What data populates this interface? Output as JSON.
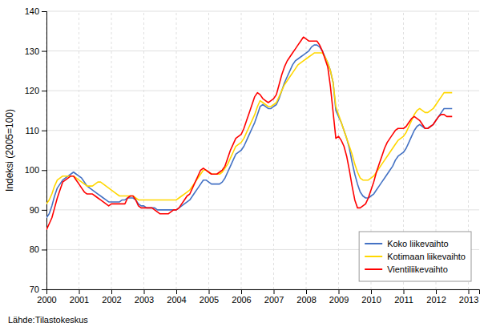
{
  "chart_data": {
    "type": "line",
    "ylabel": "Indeksi (2005=100)",
    "annotations": [
      "Lähde:Tilastokeskus"
    ],
    "xlim": [
      2000.0,
      2013.333
    ],
    "xticks": [
      2000,
      2001,
      2002,
      2003,
      2004,
      2005,
      2006,
      2007,
      2008,
      2009,
      2010,
      2011,
      2012,
      2013
    ],
    "ylim": [
      70,
      140
    ],
    "yticks": [
      70,
      80,
      90,
      100,
      110,
      120,
      130,
      140
    ],
    "grid": true,
    "legend": "lower right",
    "x": [
      2000.0,
      2000.0833333333333,
      2000.1666666666667,
      2000.25,
      2000.3333333333333,
      2000.4166666666667,
      2000.5,
      2000.5833333333333,
      2000.6666666666667,
      2000.75,
      2000.8333333333333,
      2000.9166666666667,
      2001.0,
      2001.0833333333333,
      2001.1666666666667,
      2001.25,
      2001.3333333333333,
      2001.4166666666667,
      2001.5,
      2001.5833333333333,
      2001.6666666666667,
      2001.75,
      2001.8333333333333,
      2001.9166666666667,
      2002.0,
      2002.0833333333333,
      2002.1666666666667,
      2002.25,
      2002.3333333333333,
      2002.4166666666667,
      2002.5,
      2002.5833333333333,
      2002.6666666666667,
      2002.75,
      2002.8333333333333,
      2002.9166666666667,
      2003.0,
      2003.0833333333333,
      2003.1666666666667,
      2003.25,
      2003.3333333333333,
      2003.4166666666667,
      2003.5,
      2003.5833333333333,
      2003.6666666666667,
      2003.75,
      2003.8333333333333,
      2003.9166666666667,
      2004.0,
      2004.0833333333333,
      2004.1666666666667,
      2004.25,
      2004.3333333333333,
      2004.4166666666667,
      2004.5,
      2004.5833333333333,
      2004.6666666666667,
      2004.75,
      2004.8333333333333,
      2004.9166666666667,
      2005.0,
      2005.0833333333333,
      2005.1666666666667,
      2005.25,
      2005.3333333333333,
      2005.4166666666667,
      2005.5,
      2005.5833333333333,
      2005.6666666666667,
      2005.75,
      2005.8333333333333,
      2005.9166666666667,
      2006.0,
      2006.0833333333333,
      2006.1666666666667,
      2006.25,
      2006.3333333333333,
      2006.4166666666667,
      2006.5,
      2006.5833333333333,
      2006.6666666666667,
      2006.75,
      2006.8333333333333,
      2006.9166666666667,
      2007.0,
      2007.0833333333333,
      2007.1666666666667,
      2007.25,
      2007.3333333333333,
      2007.4166666666667,
      2007.5,
      2007.5833333333333,
      2007.6666666666667,
      2007.75,
      2007.8333333333333,
      2007.9166666666667,
      2008.0,
      2008.0833333333333,
      2008.1666666666667,
      2008.25,
      2008.3333333333333,
      2008.4166666666667,
      2008.5,
      2008.5833333333333,
      2008.6666666666667,
      2008.75,
      2008.8333333333333,
      2008.9166666666667,
      2009.0,
      2009.0833333333333,
      2009.1666666666667,
      2009.25,
      2009.3333333333333,
      2009.4166666666667,
      2009.5,
      2009.5833333333333,
      2009.6666666666667,
      2009.75,
      2009.8333333333333,
      2009.9166666666667,
      2010.0,
      2010.0833333333333,
      2010.1666666666667,
      2010.25,
      2010.3333333333333,
      2010.4166666666667,
      2010.5,
      2010.5833333333333,
      2010.6666666666667,
      2010.75,
      2010.8333333333333,
      2010.9166666666667,
      2011.0,
      2011.0833333333333,
      2011.1666666666667,
      2011.25,
      2011.3333333333333,
      2011.4166666666667,
      2011.5,
      2011.5833333333333,
      2011.6666666666667,
      2011.75,
      2011.8333333333333,
      2011.9166666666667,
      2012.0,
      2012.0833333333333,
      2012.1666666666667,
      2012.25,
      2012.3333333333333,
      2012.4166666666667,
      2012.5
    ],
    "series": [
      {
        "name": "Koko liikevaihto",
        "color": "#4472C4",
        "values": [
          88.0,
          89.0,
          91.0,
          93.5,
          95.5,
          96.5,
          97.5,
          98.0,
          98.5,
          99.0,
          99.5,
          99.0,
          98.5,
          98.0,
          97.0,
          96.0,
          95.5,
          95.0,
          94.5,
          94.0,
          93.5,
          93.0,
          92.5,
          92.0,
          92.0,
          92.0,
          92.0,
          92.0,
          92.5,
          92.5,
          93.0,
          93.0,
          93.0,
          92.5,
          91.5,
          91.0,
          91.0,
          90.5,
          90.5,
          90.5,
          90.5,
          90.0,
          90.0,
          90.0,
          90.0,
          90.0,
          90.0,
          90.0,
          90.0,
          90.5,
          91.0,
          91.5,
          92.0,
          92.5,
          93.5,
          94.5,
          95.5,
          96.5,
          97.5,
          97.5,
          97.0,
          96.5,
          96.5,
          96.5,
          96.5,
          97.0,
          98.0,
          99.5,
          101.0,
          102.5,
          104.0,
          104.5,
          105.0,
          106.0,
          107.5,
          109.0,
          110.5,
          112.0,
          114.0,
          116.0,
          116.5,
          116.0,
          115.5,
          115.5,
          116.0,
          116.5,
          118.0,
          120.0,
          122.0,
          123.5,
          125.0,
          126.5,
          127.5,
          128.0,
          128.5,
          129.0,
          129.5,
          130.0,
          131.0,
          131.5,
          131.5,
          131.0,
          130.0,
          128.5,
          127.0,
          125.0,
          122.0,
          115.0,
          113.5,
          112.0,
          110.0,
          108.0,
          105.5,
          102.0,
          99.0,
          96.5,
          94.5,
          93.5,
          93.0,
          93.0,
          93.5,
          94.0,
          95.0,
          96.0,
          97.0,
          98.0,
          99.0,
          100.0,
          101.0,
          102.5,
          103.5,
          104.0,
          104.5,
          105.5,
          107.0,
          108.5,
          110.0,
          111.0,
          111.5,
          111.0,
          110.5,
          110.5,
          111.0,
          111.5,
          112.5,
          113.5,
          114.5,
          115.5,
          115.5,
          115.5,
          115.5
        ]
      },
      {
        "name": "Kotimaan liikevaihto",
        "color": "#FFD700",
        "values": [
          91.5,
          92.5,
          94.0,
          96.0,
          97.5,
          98.0,
          98.5,
          98.5,
          98.5,
          98.5,
          98.5,
          98.0,
          97.5,
          97.0,
          96.5,
          96.0,
          96.0,
          96.0,
          96.5,
          97.0,
          97.0,
          96.5,
          96.0,
          95.5,
          95.0,
          94.5,
          94.0,
          93.5,
          93.5,
          93.5,
          93.5,
          93.5,
          93.5,
          93.0,
          92.5,
          92.5,
          92.5,
          92.5,
          92.5,
          92.5,
          92.5,
          92.5,
          92.5,
          92.5,
          92.5,
          92.5,
          92.5,
          92.5,
          92.5,
          93.0,
          93.5,
          94.0,
          94.5,
          95.0,
          96.0,
          97.0,
          98.0,
          99.0,
          100.0,
          100.0,
          99.5,
          99.0,
          99.0,
          99.0,
          99.0,
          99.5,
          100.5,
          101.5,
          103.0,
          104.5,
          106.0,
          106.5,
          107.0,
          108.0,
          109.5,
          111.0,
          112.5,
          114.0,
          116.0,
          117.5,
          117.0,
          116.5,
          116.0,
          116.0,
          116.5,
          117.0,
          118.5,
          120.0,
          121.5,
          122.5,
          123.5,
          124.5,
          125.5,
          126.5,
          127.0,
          127.5,
          128.0,
          128.5,
          129.0,
          129.5,
          129.5,
          129.5,
          129.5,
          128.5,
          127.0,
          125.0,
          122.0,
          116.0,
          114.0,
          112.0,
          110.0,
          108.0,
          106.0,
          104.0,
          101.5,
          99.5,
          98.0,
          97.5,
          97.5,
          97.5,
          98.0,
          98.5,
          99.5,
          100.5,
          101.5,
          102.5,
          103.5,
          104.5,
          105.5,
          106.5,
          107.5,
          108.0,
          108.5,
          109.5,
          111.0,
          112.5,
          114.0,
          115.0,
          115.5,
          115.0,
          114.5,
          114.5,
          115.0,
          115.5,
          116.5,
          117.5,
          118.5,
          119.5,
          119.5,
          119.5,
          119.5
        ]
      },
      {
        "name": "Vientiliikevaihto",
        "color": "#FF0000",
        "values": [
          85.0,
          86.5,
          88.0,
          90.5,
          93.0,
          95.0,
          97.0,
          97.5,
          98.0,
          98.5,
          98.5,
          97.5,
          96.5,
          95.5,
          94.5,
          94.0,
          94.0,
          94.0,
          93.5,
          93.0,
          92.5,
          92.0,
          91.5,
          91.0,
          91.5,
          91.5,
          91.5,
          91.5,
          91.5,
          91.5,
          93.0,
          93.5,
          93.5,
          92.5,
          91.0,
          90.5,
          90.5,
          90.5,
          90.5,
          90.5,
          90.0,
          89.5,
          89.0,
          89.0,
          89.0,
          89.0,
          89.5,
          90.0,
          90.0,
          90.5,
          91.5,
          92.5,
          93.5,
          94.0,
          95.5,
          97.0,
          98.5,
          100.0,
          100.5,
          100.0,
          99.5,
          99.0,
          99.0,
          99.0,
          99.5,
          100.0,
          101.0,
          103.0,
          105.0,
          106.5,
          108.0,
          108.5,
          109.0,
          110.5,
          112.5,
          114.5,
          116.5,
          118.5,
          119.5,
          119.0,
          118.0,
          117.5,
          117.0,
          117.5,
          118.0,
          119.0,
          121.5,
          124.0,
          126.0,
          127.5,
          128.5,
          129.5,
          130.5,
          131.5,
          132.5,
          133.5,
          133.0,
          132.5,
          132.5,
          132.5,
          132.5,
          131.5,
          130.0,
          128.0,
          126.0,
          121.0,
          114.5,
          108.0,
          108.5,
          107.5,
          106.0,
          103.5,
          100.0,
          96.0,
          92.5,
          90.5,
          90.5,
          91.0,
          91.5,
          93.0,
          95.0,
          97.0,
          99.5,
          101.5,
          103.5,
          105.5,
          107.0,
          108.0,
          109.0,
          110.0,
          110.5,
          110.5,
          110.5,
          111.0,
          112.0,
          113.0,
          113.5,
          113.0,
          112.5,
          111.5,
          110.5,
          110.5,
          111.0,
          111.5,
          112.5,
          113.5,
          114.0,
          114.0,
          113.5,
          113.5,
          113.5
        ]
      }
    ]
  }
}
